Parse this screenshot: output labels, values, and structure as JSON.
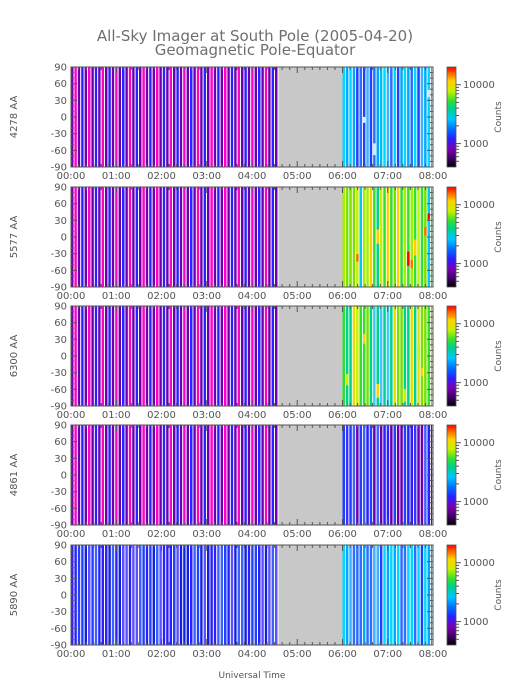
{
  "title": "All-Sky Imager at South Pole (2005-04-20)",
  "subtitle": "Geomagnetic Pole-Equator",
  "xlabel": "Universal Time",
  "colorbar_label": "Counts",
  "colorbar_ticks": [
    "10000",
    "1000"
  ],
  "chart_data": [
    {
      "type": "heatmap",
      "channel": "4278 AA",
      "ylabel": "4278 AA",
      "x_ticks": [
        "00:00",
        "01:00",
        "02:00",
        "03:00",
        "04:00",
        "05:00",
        "06:00",
        "07:00",
        "08:00"
      ],
      "y_ticks": [
        90,
        60,
        30,
        0,
        -30,
        -60,
        -90
      ],
      "xlim": [
        "00:00",
        "08:00"
      ],
      "ylim": [
        -90,
        90
      ],
      "no_data_interval": [
        "04:35",
        "06:00"
      ],
      "colorbar_range": [
        400,
        20000
      ],
      "colorbar_scale": "log",
      "segments": [
        {
          "start": "00:00",
          "end": "04:35",
          "pattern": "alternating purple/magenta/blue stripes"
        },
        {
          "start": "06:00",
          "end": "08:00",
          "pattern": "blue/cyan stripes"
        }
      ]
    },
    {
      "type": "heatmap",
      "channel": "5577 AA",
      "ylabel": "5577 AA",
      "x_ticks": [
        "00:00",
        "01:00",
        "02:00",
        "03:00",
        "04:00",
        "05:00",
        "06:00",
        "07:00",
        "08:00"
      ],
      "y_ticks": [
        90,
        60,
        30,
        0,
        -30,
        -60,
        -90
      ],
      "xlim": [
        "00:00",
        "08:00"
      ],
      "ylim": [
        -90,
        90
      ],
      "no_data_interval": [
        "04:35",
        "06:00"
      ],
      "colorbar_range": [
        400,
        20000
      ],
      "colorbar_scale": "log",
      "segments": [
        {
          "start": "00:00",
          "end": "04:35",
          "pattern": "alternating purple/magenta/blue stripes"
        },
        {
          "start": "06:00",
          "end": "08:00",
          "pattern": "green/yellow/red stripes"
        }
      ]
    },
    {
      "type": "heatmap",
      "channel": "6300 AA",
      "ylabel": "6300 AA",
      "x_ticks": [
        "00:00",
        "01:00",
        "02:00",
        "03:00",
        "04:00",
        "05:00",
        "06:00",
        "07:00",
        "08:00"
      ],
      "y_ticks": [
        90,
        60,
        30,
        0,
        -30,
        -60,
        -90
      ],
      "xlim": [
        "00:00",
        "08:00"
      ],
      "ylim": [
        -90,
        90
      ],
      "no_data_interval": [
        "04:35",
        "06:00"
      ],
      "colorbar_range": [
        400,
        20000
      ],
      "colorbar_scale": "log",
      "segments": [
        {
          "start": "00:00",
          "end": "04:35",
          "pattern": "alternating purple/magenta/blue stripes"
        },
        {
          "start": "06:00",
          "end": "08:00",
          "pattern": "green/yellow stripes"
        }
      ]
    },
    {
      "type": "heatmap",
      "channel": "4861 AA",
      "ylabel": "4861 AA",
      "x_ticks": [
        "00:00",
        "01:00",
        "02:00",
        "03:00",
        "04:00",
        "05:00",
        "06:00",
        "07:00",
        "08:00"
      ],
      "y_ticks": [
        90,
        60,
        30,
        0,
        -30,
        -60,
        -90
      ],
      "xlim": [
        "00:00",
        "08:00"
      ],
      "ylim": [
        -90,
        90
      ],
      "no_data_interval": [
        "04:35",
        "06:00"
      ],
      "colorbar_range": [
        400,
        20000
      ],
      "colorbar_scale": "log",
      "segments": [
        {
          "start": "00:00",
          "end": "04:35",
          "pattern": "alternating purple/magenta/blue stripes"
        },
        {
          "start": "06:00",
          "end": "08:00",
          "pattern": "purple/blue stripes"
        }
      ]
    },
    {
      "type": "heatmap",
      "channel": "5890 AA",
      "ylabel": "5890 AA",
      "x_ticks": [
        "00:00",
        "01:00",
        "02:00",
        "03:00",
        "04:00",
        "05:00",
        "06:00",
        "07:00",
        "08:00"
      ],
      "y_ticks": [
        90,
        60,
        30,
        0,
        -30,
        -60,
        -90
      ],
      "xlim": [
        "00:00",
        "08:00"
      ],
      "ylim": [
        -90,
        90
      ],
      "no_data_interval": [
        "04:35",
        "06:00"
      ],
      "colorbar_range": [
        400,
        20000
      ],
      "colorbar_scale": "log",
      "segments": [
        {
          "start": "00:00",
          "end": "04:35",
          "pattern": "blue stripes"
        },
        {
          "start": "06:00",
          "end": "08:00",
          "pattern": "blue/cyan stripes"
        }
      ]
    }
  ],
  "colors": {
    "no_data": "#c8c8c8",
    "axis": "#555555",
    "colormap": [
      "#000000",
      "#3a0060",
      "#7a00b0",
      "#2a1fff",
      "#0070ff",
      "#00c8ff",
      "#00d090",
      "#30e030",
      "#c8f000",
      "#ffd000",
      "#ff7000",
      "#ff0000"
    ]
  }
}
